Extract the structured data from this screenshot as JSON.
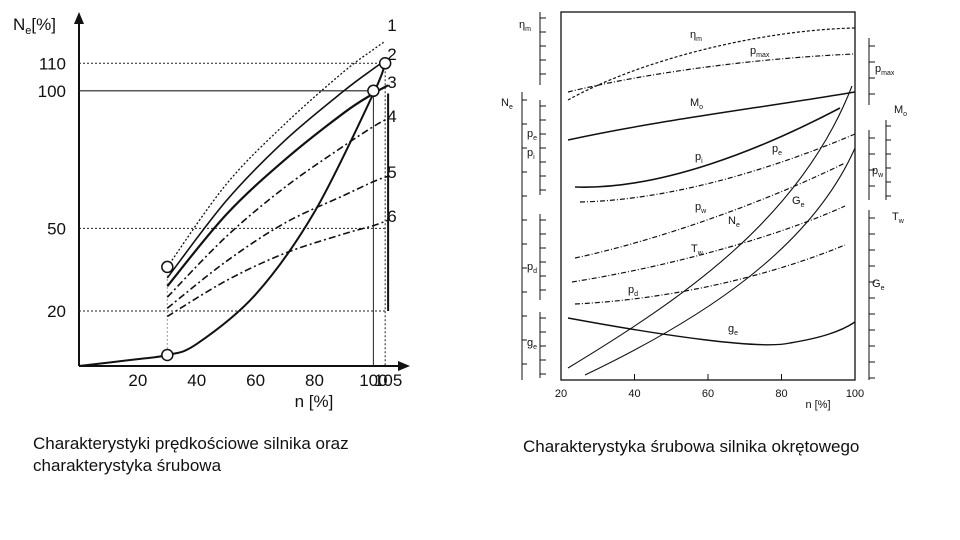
{
  "captions": {
    "left_line1": "Charakterystyki prędkościowe silnika oraz",
    "left_line2": "charakterystyka śrubowa",
    "right": "Charakterystyka śrubowa silnika okrętowego"
  },
  "chart_data": [
    {
      "type": "line",
      "ylabel": "Ne[%]",
      "ylabel_main": "N",
      "ylabel_sub": "e",
      "ylabel_unit": "[%]",
      "xlabel": "n [%]",
      "x_ticks": [
        20,
        40,
        60,
        80,
        100,
        105
      ],
      "y_ticks": [
        20,
        50,
        100,
        110
      ],
      "xlim": [
        0,
        107
      ],
      "ylim": [
        0,
        125
      ],
      "series": [
        {
          "name": "1",
          "x": [
            30,
            50,
            70,
            90,
            100,
            104
          ],
          "y": [
            36,
            66,
            88,
            107,
            115,
            118
          ]
        },
        {
          "name": "2",
          "x": [
            30,
            50,
            70,
            90,
            100,
            104
          ],
          "y": [
            32,
            60,
            82,
            100,
            108,
            111
          ]
        },
        {
          "name": "3",
          "x": [
            30,
            50,
            70,
            90,
            100,
            105
          ],
          "y": [
            29,
            55,
            75,
            92,
            99,
            102
          ]
        },
        {
          "name": "4",
          "x": [
            30,
            50,
            70,
            90,
            100,
            105
          ],
          "y": [
            25,
            47,
            65,
            80,
            87,
            90
          ]
        },
        {
          "name": "5",
          "x": [
            30,
            50,
            70,
            90,
            100,
            105
          ],
          "y": [
            21,
            38,
            52,
            62,
            67,
            69
          ]
        },
        {
          "name": "6",
          "x": [
            30,
            50,
            70,
            90,
            100,
            105
          ],
          "y": [
            18,
            31,
            41,
            48,
            51,
            53
          ]
        },
        {
          "x": [
            0,
            20,
            30,
            40,
            60,
            80,
            100,
            104
          ],
          "y": [
            0,
            2.5,
            4,
            8,
            26,
            56,
            99,
            110
          ]
        }
      ],
      "points": [
        {
          "x": 30,
          "y": 36
        },
        {
          "x": 30,
          "y": 4
        },
        {
          "x": 100,
          "y": 100
        },
        {
          "x": 104,
          "y": 110
        }
      ]
    },
    {
      "type": "line",
      "xlabel": "n [%]",
      "x_ticks": [
        20,
        40,
        60,
        80,
        100
      ],
      "xlim": [
        20,
        100
      ],
      "left_axis_labels": [
        {
          "main": "η",
          "sub": "m"
        },
        {
          "main": "N",
          "sub": "e"
        },
        {
          "main": "p",
          "sub": "e"
        },
        {
          "main": "p",
          "sub": "i"
        },
        {
          "main": "p",
          "sub": "d"
        },
        {
          "main": "g",
          "sub": "e"
        }
      ],
      "right_axis_labels": [
        {
          "main": "p",
          "sub": "max"
        },
        {
          "main": "M",
          "sub": "o"
        },
        {
          "main": "p",
          "sub": "w"
        },
        {
          "main": "T",
          "sub": "w"
        },
        {
          "main": "G",
          "sub": "e"
        }
      ],
      "curve_labels": [
        {
          "main": "η",
          "sub": "m"
        },
        {
          "main": "p",
          "sub": "max"
        },
        {
          "main": "M",
          "sub": "o"
        },
        {
          "main": "p",
          "sub": "i"
        },
        {
          "main": "p",
          "sub": "e"
        },
        {
          "main": "p",
          "sub": "w"
        },
        {
          "main": "N",
          "sub": "e"
        },
        {
          "main": "G",
          "sub": "e"
        },
        {
          "main": "T",
          "sub": "w"
        },
        {
          "main": "p",
          "sub": "d"
        },
        {
          "main": "g",
          "sub": "e"
        }
      ]
    }
  ]
}
